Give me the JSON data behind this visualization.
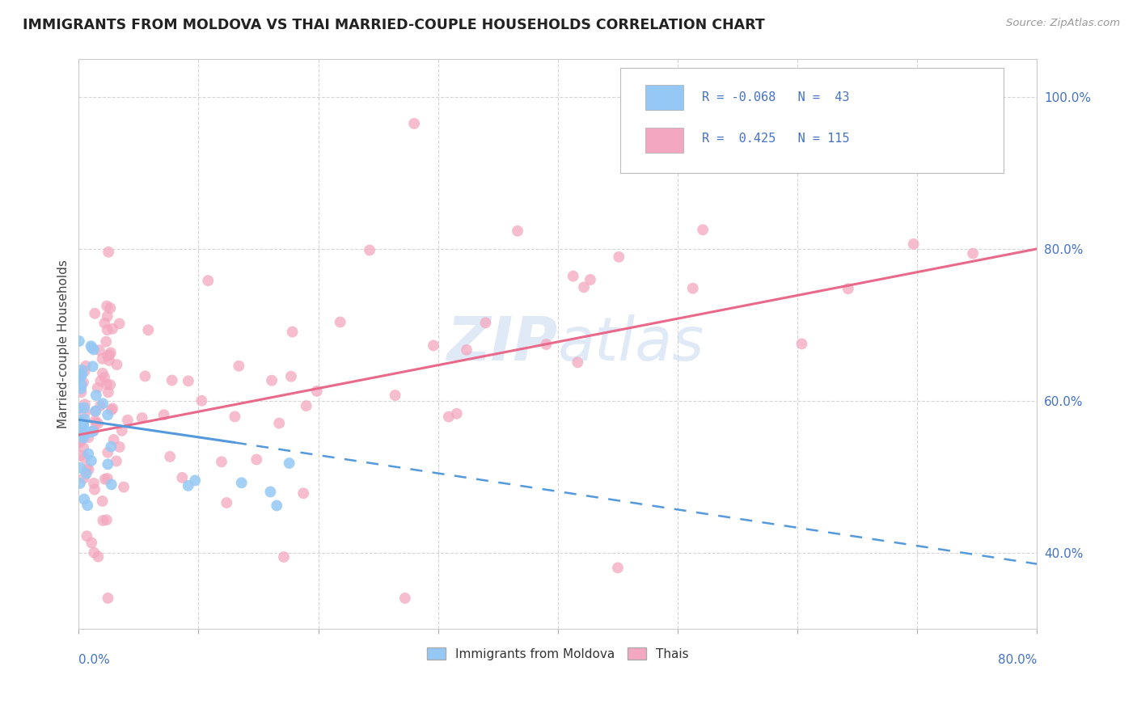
{
  "title": "IMMIGRANTS FROM MOLDOVA VS THAI MARRIED-COUPLE HOUSEHOLDS CORRELATION CHART",
  "source_text": "Source: ZipAtlas.com",
  "ylabel": "Married-couple Households",
  "xmin": 0.0,
  "xmax": 0.8,
  "ymin": 0.3,
  "ymax": 1.05,
  "moldova_R": -0.068,
  "moldova_N": 43,
  "thai_R": 0.425,
  "thai_N": 115,
  "moldova_color": "#95c8f5",
  "thai_color": "#f4a7c0",
  "moldova_line_color": "#5599dd",
  "thai_line_color": "#e8698a",
  "watermark_color": "#c5d9f0",
  "y_ticks": [
    0.4,
    0.6,
    0.8,
    1.0
  ],
  "y_tick_labels": [
    "40.0%",
    "60.0%",
    "80.0%",
    "100.0%"
  ],
  "legend_moldova_text": "R = -0.068   N =  43",
  "legend_thai_text": "R =  0.425   N = 115",
  "moldova_line_start_x": 0.0,
  "moldova_line_start_y": 0.575,
  "moldova_line_end_solid_x": 0.13,
  "moldova_line_end_solid_y": 0.545,
  "moldova_line_end_dashed_x": 0.8,
  "moldova_line_end_dashed_y": 0.385,
  "thai_line_start_x": 0.0,
  "thai_line_start_y": 0.555,
  "thai_line_end_x": 0.8,
  "thai_line_end_y": 0.8
}
